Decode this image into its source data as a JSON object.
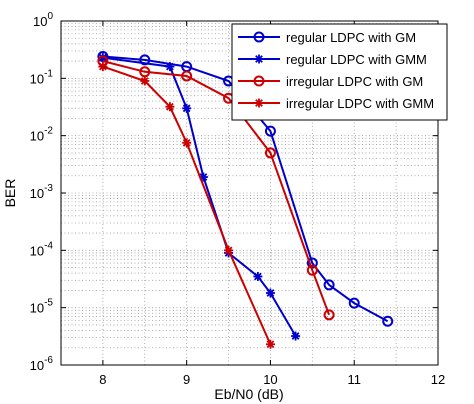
{
  "chart_data": {
    "type": "line",
    "title": "",
    "xlabel": "Eb/N0 (dB)",
    "ylabel": "BER",
    "xlim": [
      7.5,
      12
    ],
    "ylim_log10": [
      -6,
      0
    ],
    "y_scale": "log",
    "grid": "dotted major and minor",
    "legend_position": "top-right",
    "x_ticks": [
      8,
      9,
      10,
      11,
      12
    ],
    "x_tick_labels": [
      "8",
      "9",
      "10",
      "11",
      "12"
    ],
    "y_tick_labels": [
      {
        "base": "10",
        "exp": "0"
      },
      {
        "base": "10",
        "exp": "-1"
      },
      {
        "base": "10",
        "exp": "-2"
      },
      {
        "base": "10",
        "exp": "-3"
      },
      {
        "base": "10",
        "exp": "-4"
      },
      {
        "base": "10",
        "exp": "-5"
      },
      {
        "base": "10",
        "exp": "-6"
      }
    ],
    "series": [
      {
        "name": "regular LDPC with GM",
        "color": "#0000cc",
        "marker": "circle",
        "x": [
          8,
          8.5,
          9,
          9.5,
          10,
          10.5,
          10.7,
          11,
          11.4
        ],
        "y": [
          0.24,
          0.21,
          0.16,
          0.09,
          0.012,
          6e-05,
          2.5e-05,
          1.2e-05,
          5.8e-06
        ]
      },
      {
        "name": "regular LDPC with GMM",
        "color": "#0000cc",
        "marker": "star",
        "x": [
          8,
          8.8,
          9,
          9.2,
          9.5,
          9.85,
          10,
          10.3
        ],
        "y": [
          0.23,
          0.16,
          0.03,
          0.0019,
          9e-05,
          3.5e-05,
          1.8e-05,
          3.2e-06
        ]
      },
      {
        "name": "irregular LDPC with GM",
        "color": "#cc0000",
        "marker": "circle",
        "x": [
          8,
          8.5,
          9,
          9.5,
          10,
          10.5,
          10.7
        ],
        "y": [
          0.2,
          0.13,
          0.11,
          0.045,
          0.005,
          4.5e-05,
          7.5e-06
        ]
      },
      {
        "name": "irregular LDPC with GMM",
        "color": "#cc0000",
        "marker": "star",
        "x": [
          8,
          8.5,
          8.8,
          9,
          9.5,
          10
        ],
        "y": [
          0.16,
          0.09,
          0.032,
          0.0075,
          0.0001,
          2.3e-06
        ]
      }
    ]
  }
}
